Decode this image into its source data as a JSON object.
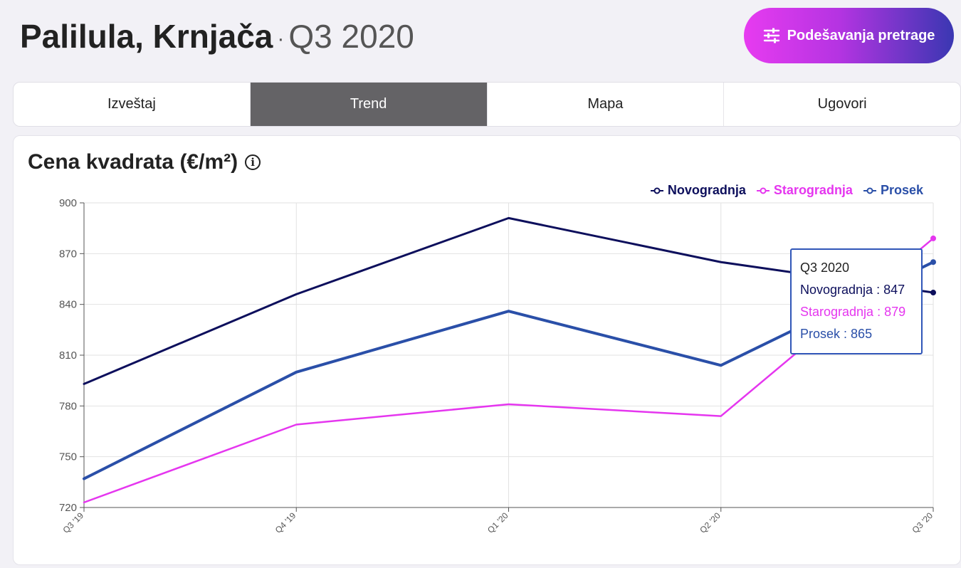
{
  "header": {
    "location": "Palilula, Krnjača",
    "separator": "·",
    "period": "Q3 2020",
    "settings_label": "Podešavanja pretrage",
    "settings_icon": "sliders-icon"
  },
  "tabs": [
    {
      "label": "Izveštaj",
      "active": false
    },
    {
      "label": "Trend",
      "active": true
    },
    {
      "label": "Mapa",
      "active": false
    },
    {
      "label": "Ugovori",
      "active": false
    }
  ],
  "card": {
    "title": "Cena kvadrata (€/m²)",
    "info_icon": "info-icon"
  },
  "colors": {
    "novogradnja": "#0d0f5c",
    "starogradnja": "#e536ef",
    "prosek": "#2a4fa8",
    "grid": "#e2e2e2",
    "axis": "#555555"
  },
  "tooltip": {
    "title": "Q3 2020",
    "rows": [
      {
        "label": "Novogradnja",
        "value": "847"
      },
      {
        "label": "Starogradnja",
        "value": "879"
      },
      {
        "label": "Prosek",
        "value": "865"
      }
    ]
  },
  "chart_data": {
    "type": "line",
    "title": "Cena kvadrata (€/m²)",
    "categories": [
      "Q3 '19",
      "Q4 '19",
      "Q1 '20",
      "Q2 '20",
      "Q3 '20"
    ],
    "ylim": [
      720,
      900
    ],
    "yticks": [
      720,
      750,
      780,
      810,
      840,
      870,
      900
    ],
    "grid": true,
    "legend_position": "top-right",
    "series": [
      {
        "name": "Novogradnja",
        "values": [
          793,
          846,
          891,
          865,
          847
        ]
      },
      {
        "name": "Starogradnja",
        "values": [
          723,
          769,
          781,
          774,
          879
        ]
      },
      {
        "name": "Prosek",
        "values": [
          737,
          800,
          836,
          804,
          865
        ]
      }
    ]
  }
}
